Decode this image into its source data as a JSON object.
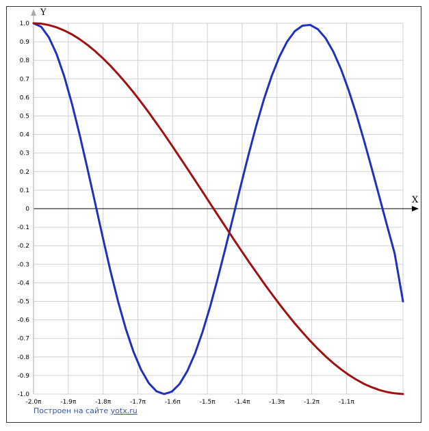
{
  "chart_data": {
    "type": "line",
    "title": "",
    "xlabel": "X",
    "ylabel": "Y",
    "xlim": [
      -6.2832,
      -2.9452
    ],
    "ylim": [
      -1.0,
      1.0
    ],
    "grid": true,
    "x_ticks": [
      {
        "value": -6.2832,
        "label": "-2.0π"
      },
      {
        "value": -5.969,
        "label": "-1.9π"
      },
      {
        "value": -5.6549,
        "label": "-1.8π"
      },
      {
        "value": -5.3407,
        "label": "-1.7π"
      },
      {
        "value": -5.0265,
        "label": "-1.6π"
      },
      {
        "value": -4.7124,
        "label": "-1.5π"
      },
      {
        "value": -4.3982,
        "label": "-1.4π"
      },
      {
        "value": -4.0841,
        "label": "-1.3π"
      },
      {
        "value": -3.7699,
        "label": "-1.2π"
      },
      {
        "value": -3.4558,
        "label": "-1.1π"
      }
    ],
    "y_ticks": [
      {
        "value": 1.0,
        "label": "1.0"
      },
      {
        "value": 0.9,
        "label": "0.9"
      },
      {
        "value": 0.8,
        "label": "0.8"
      },
      {
        "value": 0.7,
        "label": "0.7"
      },
      {
        "value": 0.6,
        "label": "0.6"
      },
      {
        "value": 0.5,
        "label": "0.5"
      },
      {
        "value": 0.4,
        "label": "0.4"
      },
      {
        "value": 0.3,
        "label": "0.3"
      },
      {
        "value": 0.2,
        "label": "0.2"
      },
      {
        "value": 0.1,
        "label": "0.1"
      },
      {
        "value": 0.0,
        "label": "0"
      },
      {
        "value": -0.1,
        "label": "-0.1"
      },
      {
        "value": -0.2,
        "label": "-0.2"
      },
      {
        "value": -0.3,
        "label": "-0.3"
      },
      {
        "value": -0.4,
        "label": "-0.4"
      },
      {
        "value": -0.5,
        "label": "-0.5"
      },
      {
        "value": -0.6,
        "label": "-0.6"
      },
      {
        "value": -0.7,
        "label": "-0.7"
      },
      {
        "value": -0.8,
        "label": "-0.8"
      },
      {
        "value": -0.9,
        "label": "-0.9"
      },
      {
        "value": -1.0,
        "label": "-1.0"
      }
    ],
    "series": [
      {
        "color": "#1f2fbf",
        "x": [
          -6.2832,
          -6.2138,
          -6.1444,
          -6.0749,
          -6.0055,
          -5.9361,
          -5.8667,
          -5.7972,
          -5.7278,
          -5.6584,
          -5.589,
          -5.5196,
          -5.4501,
          -5.3807,
          -5.3113,
          -5.2419,
          -5.1725,
          -5.103,
          -5.0336,
          -4.9642,
          -4.8948,
          -4.8253,
          -4.7559,
          -4.6865,
          -4.6171,
          -4.5477,
          -4.4782,
          -4.4088,
          -4.3394,
          -4.27,
          -4.2006,
          -4.1311,
          -4.0617,
          -3.9923,
          -3.9229,
          -3.8534,
          -3.784,
          -3.7146,
          -3.6452,
          -3.5758,
          -3.5063,
          -3.4369,
          -3.3675,
          -3.2981,
          -3.2287,
          -3.1592,
          -3.0898,
          -3.0204,
          -2.9452
        ],
        "y": [
          1.0,
          0.981,
          0.924,
          0.834,
          0.713,
          0.566,
          0.399,
          0.219,
          0.034,
          -0.153,
          -0.334,
          -0.5,
          -0.647,
          -0.771,
          -0.869,
          -0.941,
          -0.985,
          -1.0,
          -0.987,
          -0.946,
          -0.877,
          -0.783,
          -0.664,
          -0.526,
          -0.372,
          -0.209,
          -0.041,
          0.129,
          0.294,
          0.45,
          0.592,
          0.716,
          0.82,
          0.901,
          0.957,
          0.987,
          0.991,
          0.968,
          0.92,
          0.848,
          0.754,
          0.64,
          0.511,
          0.369,
          0.219,
          0.065,
          -0.09,
          -0.242,
          -0.5
        ]
      },
      {
        "color": "#a01010",
        "x": [
          -6.2832,
          -6.2138,
          -6.1444,
          -6.0749,
          -6.0055,
          -5.9361,
          -5.8667,
          -5.7972,
          -5.7278,
          -5.6584,
          -5.589,
          -5.5196,
          -5.4501,
          -5.3807,
          -5.3113,
          -5.2419,
          -5.1725,
          -5.103,
          -5.0336,
          -4.9642,
          -4.8948,
          -4.8253,
          -4.7559,
          -4.6865,
          -4.6171,
          -4.5477,
          -4.4782,
          -4.4088,
          -4.3394,
          -4.27,
          -4.2006,
          -4.1311,
          -4.0617,
          -3.9923,
          -3.9229,
          -3.8534,
          -3.784,
          -3.7146,
          -3.6452,
          -3.5758,
          -3.5063,
          -3.4369,
          -3.3675,
          -3.2981,
          -3.2287,
          -3.1592,
          -3.0898,
          -3.0204,
          -2.9452
        ],
        "y": [
          1.0,
          0.998,
          0.99,
          0.978,
          0.961,
          0.94,
          0.914,
          0.884,
          0.85,
          0.812,
          0.771,
          0.726,
          0.678,
          0.628,
          0.574,
          0.519,
          0.461,
          0.402,
          0.341,
          0.279,
          0.217,
          0.154,
          0.091,
          0.027,
          -0.036,
          -0.099,
          -0.162,
          -0.224,
          -0.285,
          -0.344,
          -0.403,
          -0.46,
          -0.515,
          -0.568,
          -0.619,
          -0.667,
          -0.713,
          -0.756,
          -0.796,
          -0.833,
          -0.866,
          -0.896,
          -0.922,
          -0.945,
          -0.963,
          -0.978,
          -0.989,
          -0.996,
          -1.0
        ]
      }
    ]
  },
  "credit": {
    "text": "Построен на сайте",
    "link": "yotx.ru"
  }
}
